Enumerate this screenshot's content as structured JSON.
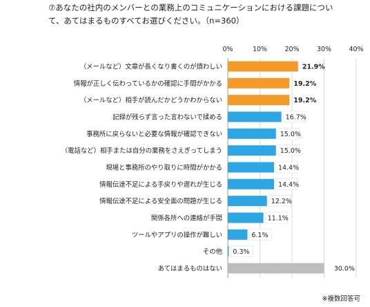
{
  "question": {
    "line1": "⑦あなたの社内のメンバーとの業務上のコミュニケーションにおける課題につい",
    "line2": "て、あてはまるものすべてお選びください。（n=360）"
  },
  "footnote": "※複数回答可",
  "colors": {
    "highlight": "#f39a2b",
    "normal": "#2ea6e6",
    "none": "#bdbdbd",
    "grid": "#d9d9d9"
  },
  "chart_data": {
    "type": "bar",
    "orientation": "horizontal",
    "xlim": [
      0,
      40
    ],
    "ticks": [
      "0%",
      "10%",
      "20%",
      "30%",
      "40%"
    ],
    "tick_values": [
      0,
      10,
      20,
      30,
      40
    ],
    "categories": [
      "（メールなど）文章が長くなり書くのが煩わしい",
      "情報が正しく伝わっているかの確認に手間がかかる",
      "（メールなど）相手が読んだかどうかわからない",
      "記録が残らず言った言わないで揉める",
      "事務所に戻らないと必要な情報が確認できない",
      "（電話など）相手または自分の業務をさえぎってしまう",
      "現場と事務所のやり取りに時間がかかる",
      "情報伝達不足による手戻りや遅れが生じる",
      "情報伝達不足による安全面の問題が生じる",
      "関係各所への連絡が手間",
      "ツールやアプリの操作が難しい",
      "その他",
      "あてはまるものはない"
    ],
    "values": [
      21.9,
      19.2,
      19.2,
      16.7,
      15.0,
      15.0,
      14.4,
      14.4,
      12.2,
      11.1,
      6.1,
      0.3,
      30.0
    ],
    "labels": [
      "21.9%",
      "19.2%",
      "19.2%",
      "16.7%",
      "15.0%",
      "15.0%",
      "14.4%",
      "14.4%",
      "12.2%",
      "11.1%",
      "6.1%",
      "0.3%",
      "30.0%"
    ],
    "highlight": [
      true,
      true,
      true,
      false,
      false,
      false,
      false,
      false,
      false,
      false,
      false,
      false,
      false
    ],
    "kind": [
      "highlight",
      "highlight",
      "highlight",
      "normal",
      "normal",
      "normal",
      "normal",
      "normal",
      "normal",
      "normal",
      "normal",
      "normal",
      "none"
    ]
  }
}
